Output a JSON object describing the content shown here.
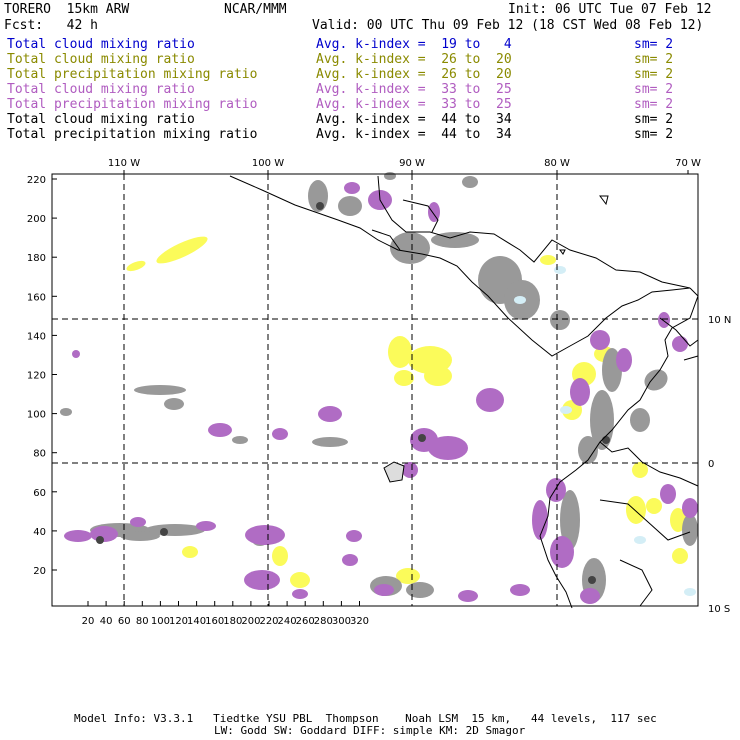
{
  "header": {
    "model": "TORERO  15km ARW",
    "org": "NCAR/MMM",
    "init": "Init: 06 UTC Tue 07 Feb 12",
    "fcst": "Fcst:   42 h",
    "valid": "Valid: 00 UTC Thu 09 Feb 12 (18 CST Wed 08 Feb 12)"
  },
  "legend": [
    {
      "name": "Total cloud mixing ratio",
      "kindex": "Avg. k-index =  19 to   4",
      "sm": "sm= 2",
      "color": "#0000cc"
    },
    {
      "name": "Total cloud mixing ratio",
      "kindex": "Avg. k-index =  26 to  20",
      "sm": "sm= 2",
      "color": "#8a8a00"
    },
    {
      "name": "Total precipitation mixing ratio",
      "kindex": "Avg. k-index =  26 to  20",
      "sm": "sm= 2",
      "color": "#8a8a00"
    },
    {
      "name": "Total cloud mixing ratio",
      "kindex": "Avg. k-index =  33 to  25",
      "sm": "sm= 2",
      "color": "#b05cc0"
    },
    {
      "name": "Total precipitation mixing ratio",
      "kindex": "Avg. k-index =  33 to  25",
      "sm": "sm= 2",
      "color": "#b05cc0"
    },
    {
      "name": "Total cloud mixing ratio",
      "kindex": "Avg. k-index =  44 to  34",
      "sm": "sm= 2",
      "color": "#000000"
    },
    {
      "name": "Total precipitation mixing ratio",
      "kindex": "Avg. k-index =  44 to  34",
      "sm": "sm= 2",
      "color": "#000000"
    }
  ],
  "map": {
    "lon_labels": [
      "110 W",
      "100 W",
      "90 W",
      "80 W",
      "70 W"
    ],
    "lat_labels": [
      "10 N",
      "0",
      "10 S"
    ],
    "x_ticks": [
      "20",
      "40",
      "60",
      "80",
      "100",
      "120",
      "140",
      "160",
      "180",
      "200",
      "220",
      "240",
      "260",
      "280",
      "300",
      "320"
    ],
    "y_ticks": [
      "20",
      "40",
      "60",
      "80",
      "100",
      "120",
      "140",
      "160",
      "180",
      "200",
      "220"
    ],
    "colors": {
      "gray": "#999999",
      "purple": "#b06cc4",
      "yellow": "#fbfb5a",
      "cyan": "#d4eef6",
      "dark": "#444444"
    }
  },
  "footer": {
    "line1": "Model Info: V3.3.1   Tiedtke YSU PBL  Thompson    Noah LSM  15 km,   44 levels,  117 sec",
    "line2": "LW: Godd SW: Goddard DIFF: simple KM: 2D Smagor"
  }
}
